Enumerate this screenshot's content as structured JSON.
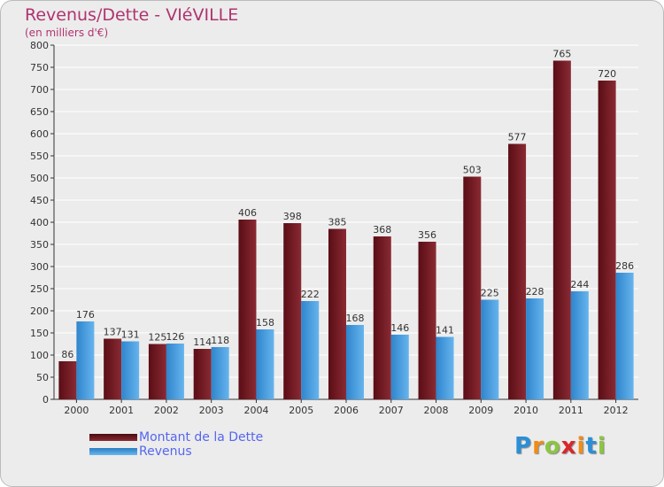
{
  "header": {
    "title": "Revenus/Dette - VIéVILLE",
    "subtitle": "(en milliers d'€)"
  },
  "legend": [
    {
      "label": "Montant de la Dette",
      "color": "#7a1f28"
    },
    {
      "label": "Revenus",
      "color": "#4a9ee0"
    }
  ],
  "logo": {
    "text": "Proxiti",
    "letters": [
      {
        "ch": "P",
        "color": "#2a8fd6"
      },
      {
        "ch": "r",
        "color": "#f08c1a"
      },
      {
        "ch": "o",
        "color": "#8cc63f"
      },
      {
        "ch": "x",
        "color": "#d9262b"
      },
      {
        "ch": "i",
        "color": "#f08c1a"
      },
      {
        "ch": "t",
        "color": "#2a8fd6"
      },
      {
        "ch": "i",
        "color": "#8cc63f"
      }
    ]
  },
  "chart_data": {
    "type": "bar",
    "title": "Revenus/Dette - VIéVILLE",
    "subtitle": "(en milliers d'€)",
    "categories": [
      "2000",
      "2001",
      "2002",
      "2003",
      "2004",
      "2005",
      "2006",
      "2007",
      "2008",
      "2009",
      "2010",
      "2011",
      "2012"
    ],
    "series": [
      {
        "name": "Montant de la Dette",
        "color": "#7a1f28",
        "values": [
          86,
          137,
          125,
          114,
          406,
          398,
          385,
          368,
          356,
          503,
          577,
          765,
          720
        ]
      },
      {
        "name": "Revenus",
        "color": "#4a9ee0",
        "values": [
          176,
          131,
          126,
          118,
          158,
          222,
          168,
          146,
          141,
          225,
          228,
          244,
          286
        ]
      }
    ],
    "ylim": [
      0,
      800
    ],
    "yticks": [
      0,
      50,
      100,
      150,
      200,
      250,
      300,
      350,
      400,
      450,
      500,
      550,
      600,
      650,
      700,
      750,
      800
    ],
    "grid": true,
    "legend_position": "bottom-left"
  }
}
